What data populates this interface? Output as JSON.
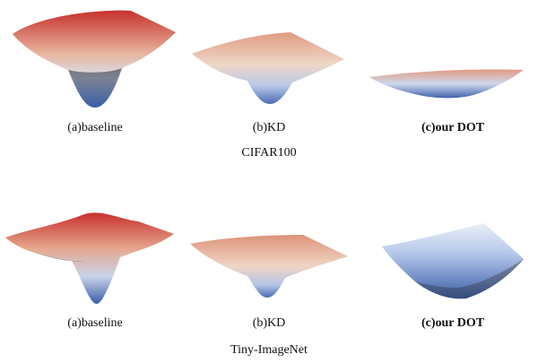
{
  "figure": {
    "groups": [
      {
        "dataset": "CIFAR100",
        "captions": [
          "(a)baseline",
          "(b)KD",
          "(c)our DOT"
        ]
      },
      {
        "dataset": "Tiny-ImageNet",
        "captions": [
          "(a)baseline",
          "(b)KD",
          "(c)our DOT"
        ]
      }
    ],
    "colors": {
      "high": "#c8312c",
      "mid": "#e9c8b5",
      "low": "#3a5ea8",
      "dark": "#2a2a2a"
    }
  }
}
